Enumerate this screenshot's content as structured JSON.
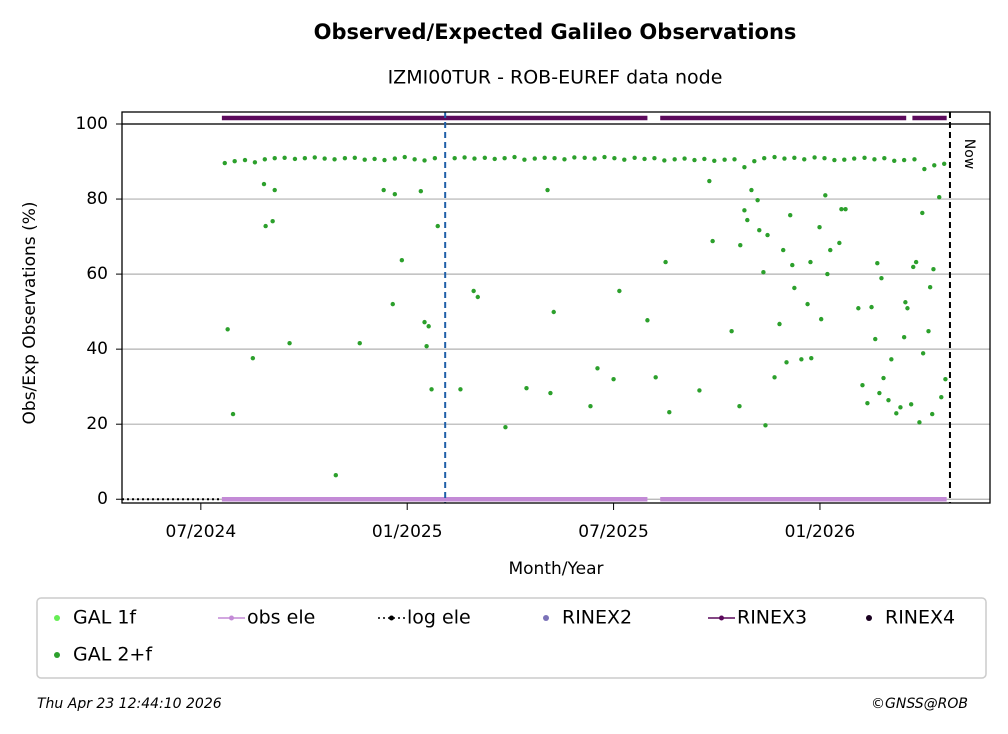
{
  "chart_data": {
    "type": "scatter",
    "title": "Observed/Expected Galileo Observations",
    "subtitle": "IZMI00TUR - ROB-EUREF data node",
    "x_label": "Month/Year",
    "y_label": "Obs/Exp Observations (%)",
    "xlim": [
      2024.309,
      2026.412
    ],
    "ylim": [
      -1,
      103.2
    ],
    "xticks": [
      {
        "value": 2024.5,
        "label": "07/2024"
      },
      {
        "value": 2025.0,
        "label": "01/2025"
      },
      {
        "value": 2025.5,
        "label": "07/2025"
      },
      {
        "value": 2026.0,
        "label": "01/2026"
      }
    ],
    "yticks": [
      0,
      20,
      40,
      60,
      80,
      100
    ],
    "grid": true,
    "ref_line": 100,
    "vlines": [
      {
        "x": 2025.092,
        "color": "#1f5fa8"
      },
      {
        "x": 2026.315,
        "color": "#000000",
        "label": "Now"
      }
    ],
    "series": [
      {
        "name": "GAL 1f",
        "color": "#66ee55",
        "style": "dot",
        "x": [],
        "values": []
      },
      {
        "name": "obs ele",
        "color": "#c38ad6",
        "style": "line",
        "x": [
          2024.551,
          2025.582,
          2025.582,
          2025.613,
          2026.307
        ],
        "values": [
          0,
          0,
          null,
          0,
          0
        ]
      },
      {
        "name": "log ele",
        "color": "#000000",
        "style": "dotted",
        "x": [
          2024.309,
          2024.551
        ],
        "values": [
          0,
          0
        ]
      },
      {
        "name": "RINEX2",
        "color": "#7b72b8",
        "style": "dot",
        "x": [],
        "values": []
      },
      {
        "name": "RINEX3",
        "color": "#5c0a5c",
        "style": "line",
        "x": [
          2024.551,
          2025.582,
          2025.582,
          2025.613,
          2026.209,
          2026.209,
          2026.224,
          2026.307
        ],
        "values": [
          101.6,
          101.6,
          null,
          101.6,
          101.6,
          null,
          101.6,
          101.6
        ]
      },
      {
        "name": "RINEX4",
        "color": "#1a0020",
        "style": "dot",
        "x": [],
        "values": []
      },
      {
        "name": "GAL 2+f",
        "color": "#2ca02c",
        "style": "dot",
        "x": [
          2024.558,
          2024.582,
          2024.607,
          2024.631,
          2024.655,
          2024.679,
          2024.703,
          2024.728,
          2024.752,
          2024.776,
          2024.8,
          2024.824,
          2024.849,
          2024.873,
          2024.897,
          2024.921,
          2024.945,
          2024.97,
          2024.994,
          2025.018,
          2025.042,
          2025.067,
          2025.115,
          2025.139,
          2025.163,
          2025.188,
          2025.212,
          2025.236,
          2025.26,
          2025.284,
          2025.309,
          2025.333,
          2025.357,
          2025.381,
          2025.405,
          2025.43,
          2025.454,
          2025.478,
          2025.502,
          2025.526,
          2025.551,
          2025.575,
          2025.599,
          2025.623,
          2025.648,
          2025.672,
          2025.696,
          2025.72,
          2025.744,
          2025.769,
          2025.793,
          2025.817,
          2025.841,
          2025.865,
          2025.89,
          2025.914,
          2025.938,
          2025.962,
          2025.987,
          2026.011,
          2026.035,
          2026.059,
          2026.083,
          2026.108,
          2026.132,
          2026.156,
          2026.18,
          2026.204,
          2026.229,
          2026.253,
          2026.277,
          2026.301,
          2024.565,
          2024.578,
          2024.626,
          2024.653,
          2024.657,
          2024.674,
          2024.679,
          2024.715,
          2024.827,
          2024.885,
          2024.943,
          2024.97,
          2024.965,
          2024.987,
          2025.033,
          2025.042,
          2025.047,
          2025.052,
          2025.059,
          2025.074,
          2025.129,
          2025.161,
          2025.171,
          2025.238,
          2025.289,
          2025.34,
          2025.347,
          2025.355,
          2025.444,
          2025.461,
          2025.5,
          2025.514,
          2025.582,
          2025.602,
          2025.626,
          2025.635,
          2025.708,
          2025.732,
          2025.74,
          2025.786,
          2025.805,
          2025.807,
          2025.817,
          2025.824,
          2025.834,
          2025.849,
          2025.853,
          2025.863,
          2025.868,
          2025.873,
          2025.89,
          2025.902,
          2025.911,
          2025.919,
          2025.928,
          2025.933,
          2025.938,
          2025.955,
          2025.97,
          2025.977,
          2025.979,
          2025.999,
          2026.003,
          2026.013,
          2026.018,
          2026.025,
          2026.047,
          2026.052,
          2026.062,
          2026.093,
          2026.103,
          2026.115,
          2026.125,
          2026.134,
          2026.139,
          2026.144,
          2026.149,
          2026.154,
          2026.166,
          2026.173,
          2026.185,
          2026.195,
          2026.204,
          2026.207,
          2026.212,
          2026.221,
          2026.226,
          2026.233,
          2026.241,
          2026.25,
          2026.248,
          2026.263,
          2026.267,
          2026.275,
          2026.272,
          2026.289,
          2026.294,
          2026.304
        ],
        "values": [
          89.6,
          90.1,
          90.4,
          89.8,
          90.6,
          90.9,
          91.0,
          90.7,
          90.9,
          91.1,
          90.8,
          90.6,
          90.9,
          91.0,
          90.5,
          90.7,
          90.4,
          90.8,
          91.2,
          90.6,
          90.3,
          90.9,
          90.9,
          91.1,
          90.8,
          91.0,
          90.7,
          90.9,
          91.2,
          90.5,
          90.8,
          91.0,
          90.9,
          90.6,
          91.1,
          91.0,
          90.8,
          91.2,
          90.9,
          90.5,
          91.0,
          90.7,
          90.9,
          90.3,
          90.6,
          90.8,
          90.4,
          90.7,
          90.2,
          90.5,
          90.6,
          88.5,
          90.1,
          90.9,
          91.2,
          90.8,
          91.0,
          90.6,
          91.1,
          90.9,
          90.4,
          90.5,
          90.8,
          91.0,
          90.6,
          90.9,
          90.2,
          90.4,
          90.6,
          88.0,
          89.0,
          89.4,
          45.3,
          22.7,
          37.6,
          84.0,
          72.8,
          74.1,
          82.4,
          41.6,
          6.4,
          41.6,
          82.4,
          81.3,
          52.0,
          63.7,
          82.1,
          47.2,
          40.8,
          46.1,
          29.3,
          72.8,
          29.3,
          55.5,
          53.9,
          19.2,
          29.6,
          82.4,
          28.3,
          49.9,
          24.8,
          34.9,
          32.0,
          55.5,
          47.7,
          32.5,
          63.2,
          23.2,
          29.0,
          84.8,
          68.8,
          44.8,
          24.8,
          67.7,
          77.0,
          74.4,
          82.4,
          79.7,
          71.7,
          60.5,
          19.7,
          70.4,
          32.5,
          46.7,
          66.4,
          36.5,
          75.7,
          62.4,
          56.3,
          37.3,
          52.0,
          63.2,
          37.6,
          72.5,
          48.0,
          81.0,
          60.0,
          66.4,
          68.3,
          77.3,
          77.3,
          50.9,
          30.4,
          25.6,
          51.2,
          42.7,
          62.9,
          28.3,
          58.9,
          32.3,
          26.4,
          37.3,
          22.9,
          24.5,
          43.2,
          52.5,
          50.9,
          25.3,
          61.9,
          63.2,
          20.5,
          38.9,
          76.3,
          44.8,
          56.5,
          61.3,
          22.7,
          80.5,
          27.2,
          32.0
        ]
      }
    ],
    "footer_left": "Thu Apr 23 12:44:10 2026",
    "footer_right": "©GNSS@ROB"
  }
}
